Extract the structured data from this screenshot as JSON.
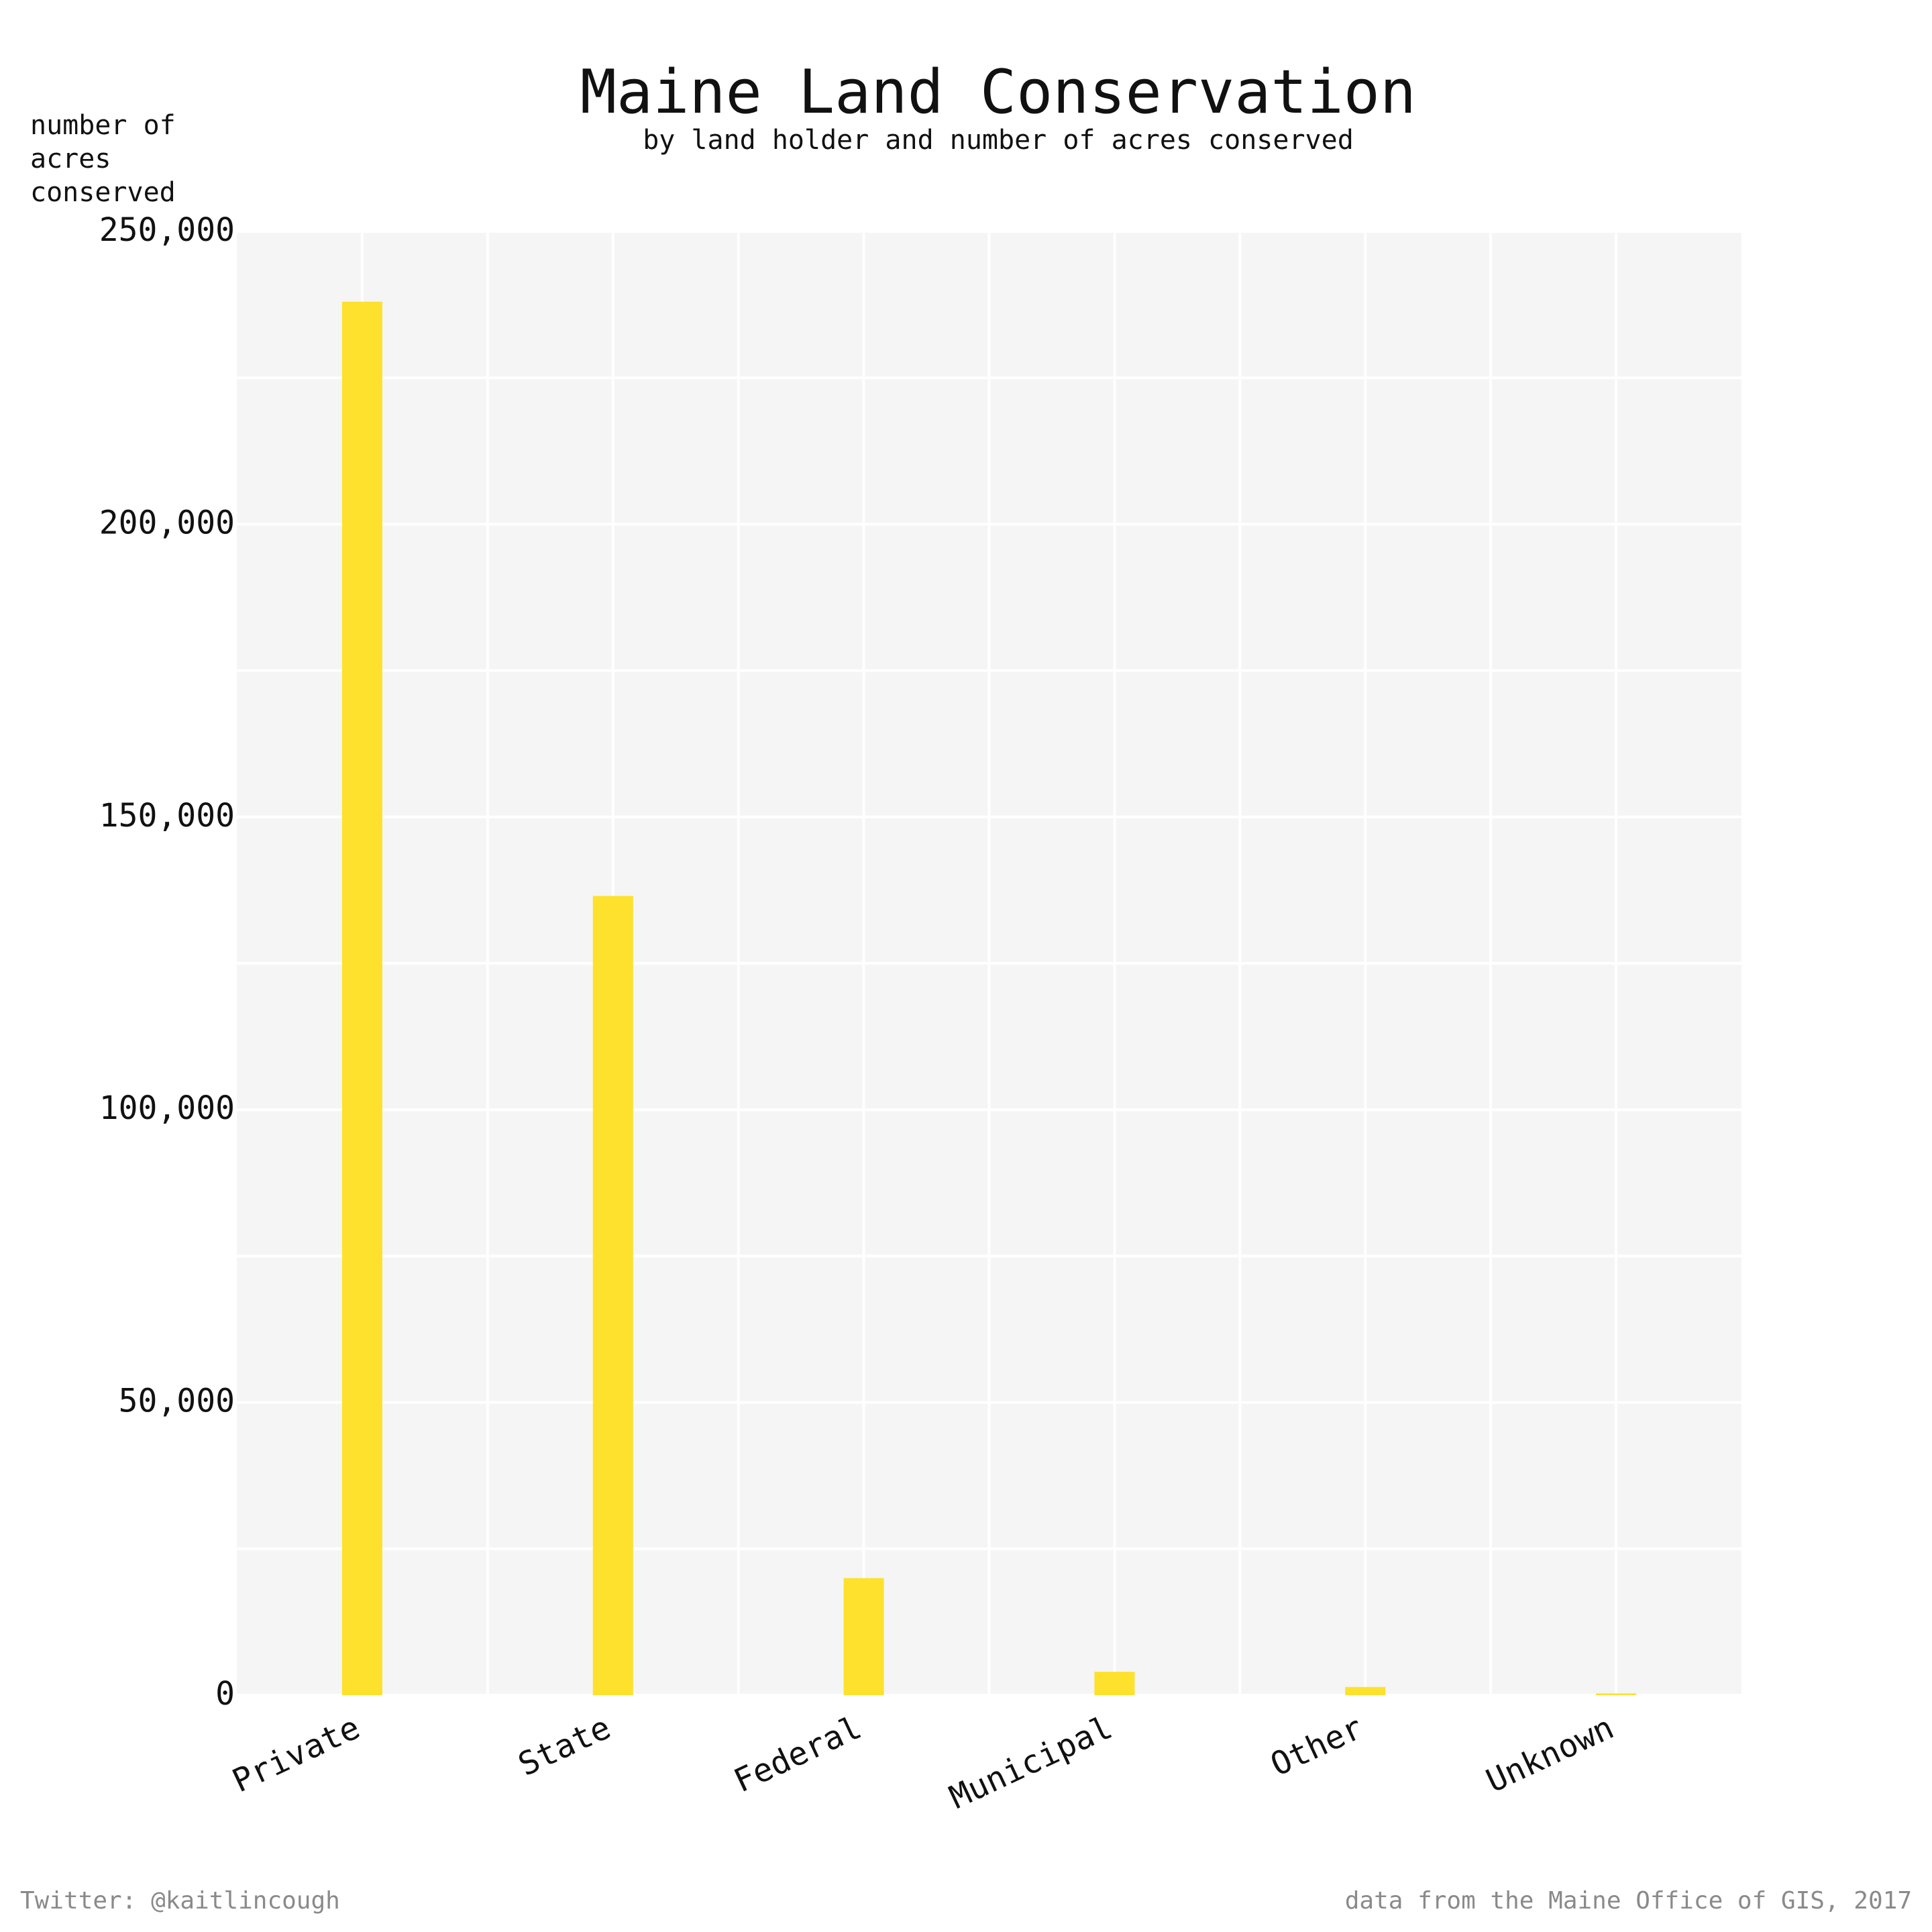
{
  "chart_data": {
    "type": "bar",
    "title": "Maine Land Conservation",
    "subtitle": "by land holder and number of acres conserved",
    "ylabel_lines": [
      "number of",
      "acres",
      "conserved"
    ],
    "xlabel": "",
    "categories": [
      "Private",
      "State",
      "Federal",
      "Municipal",
      "Other",
      "Unknown"
    ],
    "values": [
      238000,
      136500,
      20000,
      4000,
      1400,
      300
    ],
    "ylim": [
      0,
      250000
    ],
    "y_ticks": [
      0,
      50000,
      100000,
      150000,
      200000,
      250000
    ],
    "y_tick_labels": [
      "0",
      "50,000",
      "100,000",
      "150,000",
      "200,000",
      "250,000"
    ],
    "grid": true,
    "colors": {
      "bar": "#fde12d",
      "panel": "#f5f5f5",
      "grid": "#ffffff"
    }
  },
  "footer": {
    "left": "Twitter: @kaitlincough",
    "right": "data from the Maine Office of GIS, 2017"
  }
}
